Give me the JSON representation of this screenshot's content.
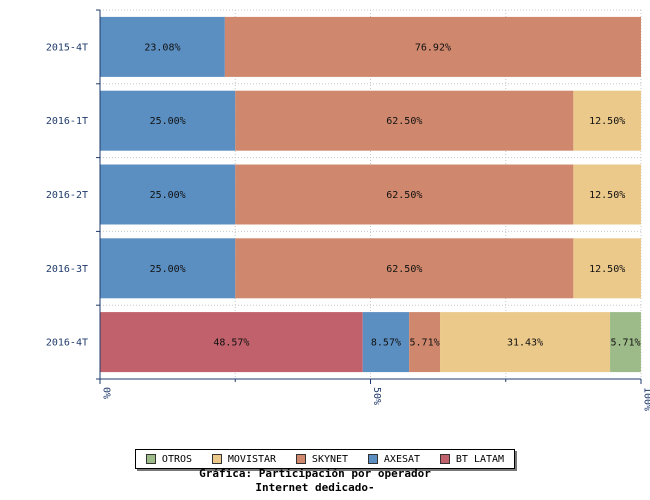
{
  "chart_data": {
    "type": "bar",
    "orientation": "horizontal",
    "stacked": true,
    "categories": [
      "2015-4T",
      "2016-1T",
      "2016-2T",
      "2016-3T",
      "2016-4T"
    ],
    "series": [
      {
        "name": "BT LATAM",
        "color": "#c0616b",
        "values": [
          0,
          0,
          0,
          0,
          48.57
        ],
        "labels": [
          "",
          "",
          "",
          "",
          "48.57%"
        ]
      },
      {
        "name": "AXESAT",
        "color": "#5b8fc2",
        "values": [
          23.08,
          25.0,
          25.0,
          25.0,
          8.57
        ],
        "labels": [
          "23.08%",
          "25.00%",
          "25.00%",
          "25.00%",
          "8.57%"
        ]
      },
      {
        "name": "SKYNET",
        "color": "#cf886d",
        "values": [
          76.92,
          62.5,
          62.5,
          62.5,
          5.71
        ],
        "labels": [
          "76.92%",
          "62.50%",
          "62.50%",
          "62.50%",
          "5.71%"
        ]
      },
      {
        "name": "MOVISTAR",
        "color": "#ebc98a",
        "values": [
          0,
          12.5,
          12.5,
          12.5,
          31.43
        ],
        "labels": [
          "",
          "12.50%",
          "12.50%",
          "12.50%",
          "31.43%"
        ]
      },
      {
        "name": "OTROS",
        "color": "#9dbb89",
        "values": [
          0,
          0,
          0,
          0,
          5.71
        ],
        "labels": [
          "",
          "",
          "",
          "",
          "5.71%"
        ]
      }
    ],
    "xlim": [
      0,
      100
    ],
    "x_ticks": [
      "0%",
      "50%",
      "100%"
    ],
    "legend_order": [
      "OTROS",
      "MOVISTAR",
      "SKYNET",
      "AXESAT",
      "BT LATAM"
    ],
    "legend_position": "bottom",
    "title_lines": [
      "Gráfica: Participación por operador",
      "Internet dedicado-"
    ]
  }
}
